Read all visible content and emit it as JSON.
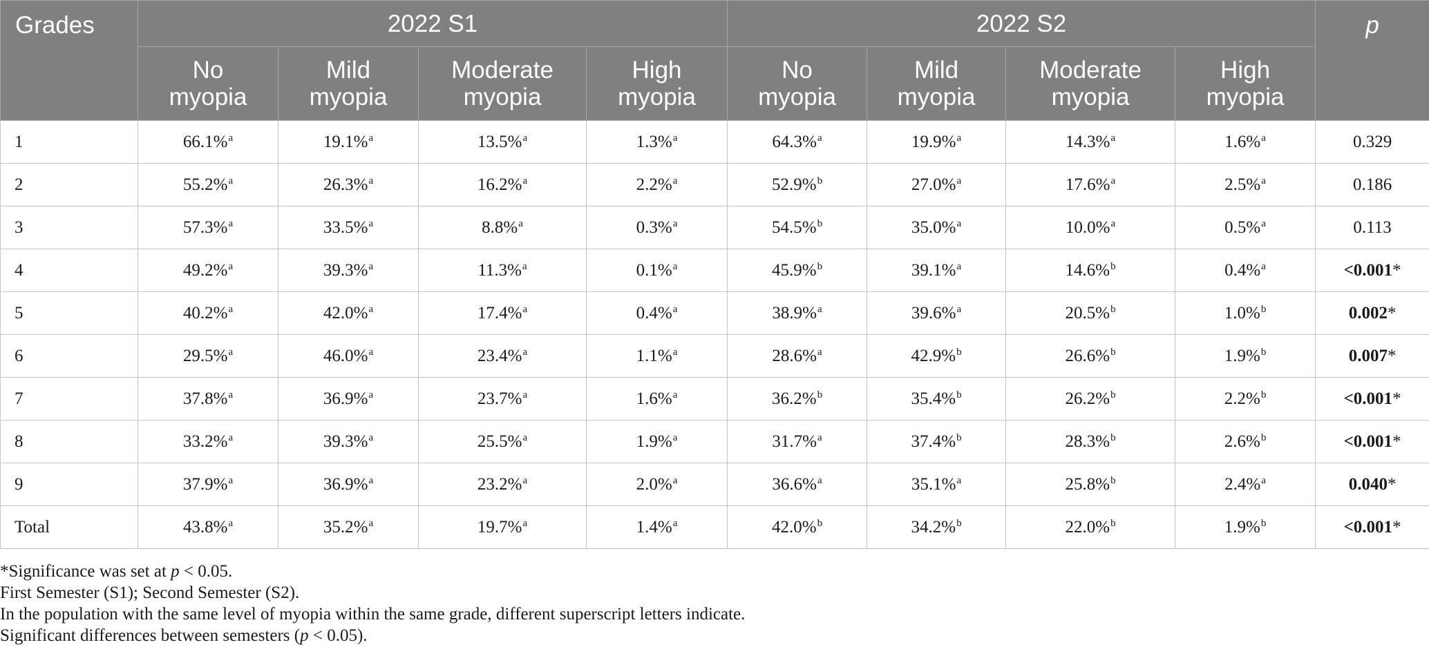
{
  "table": {
    "header": {
      "grades": "Grades",
      "group1": "2022 S1",
      "group2": "2022 S2",
      "p": "p",
      "sub": [
        [
          "No",
          "myopia"
        ],
        [
          "Mild",
          "myopia"
        ],
        [
          "Moderate",
          "myopia"
        ],
        [
          "High",
          "myopia"
        ],
        [
          "No",
          "myopia"
        ],
        [
          "Mild",
          "myopia"
        ],
        [
          "Moderate",
          "myopia"
        ],
        [
          "High",
          "myopia"
        ]
      ]
    },
    "rows": [
      {
        "grade": "1",
        "cells": [
          [
            "66.1%",
            "a"
          ],
          [
            "19.1%",
            "a"
          ],
          [
            "13.5%",
            "a"
          ],
          [
            "1.3%",
            "a"
          ],
          [
            "64.3%",
            "a"
          ],
          [
            "19.9%",
            "a"
          ],
          [
            "14.3%",
            "a"
          ],
          [
            "1.6%",
            "a"
          ]
        ],
        "p": "0.329",
        "sig": false
      },
      {
        "grade": "2",
        "cells": [
          [
            "55.2%",
            "a"
          ],
          [
            "26.3%",
            "a"
          ],
          [
            "16.2%",
            "a"
          ],
          [
            "2.2%",
            "a"
          ],
          [
            "52.9%",
            "b"
          ],
          [
            "27.0%",
            "a"
          ],
          [
            "17.6%",
            "a"
          ],
          [
            "2.5%",
            "a"
          ]
        ],
        "p": "0.186",
        "sig": false
      },
      {
        "grade": "3",
        "cells": [
          [
            "57.3%",
            "a"
          ],
          [
            "33.5%",
            "a"
          ],
          [
            "8.8%",
            "a"
          ],
          [
            "0.3%",
            "a"
          ],
          [
            "54.5%",
            "b"
          ],
          [
            "35.0%",
            "a"
          ],
          [
            "10.0%",
            "a"
          ],
          [
            "0.5%",
            "a"
          ]
        ],
        "p": "0.113",
        "sig": false
      },
      {
        "grade": "4",
        "cells": [
          [
            "49.2%",
            "a"
          ],
          [
            "39.3%",
            "a"
          ],
          [
            "11.3%",
            "a"
          ],
          [
            "0.1%",
            "a"
          ],
          [
            "45.9%",
            "b"
          ],
          [
            "39.1%",
            "a"
          ],
          [
            "14.6%",
            "b"
          ],
          [
            "0.4%",
            "a"
          ]
        ],
        "p": "<0.001",
        "sig": true
      },
      {
        "grade": "5",
        "cells": [
          [
            "40.2%",
            "a"
          ],
          [
            "42.0%",
            "a"
          ],
          [
            "17.4%",
            "a"
          ],
          [
            "0.4%",
            "a"
          ],
          [
            "38.9%",
            "a"
          ],
          [
            "39.6%",
            "a"
          ],
          [
            "20.5%",
            "b"
          ],
          [
            "1.0%",
            "b"
          ]
        ],
        "p": "0.002",
        "sig": true
      },
      {
        "grade": "6",
        "cells": [
          [
            "29.5%",
            "a"
          ],
          [
            "46.0%",
            "a"
          ],
          [
            "23.4%",
            "a"
          ],
          [
            "1.1%",
            "a"
          ],
          [
            "28.6%",
            "a"
          ],
          [
            "42.9%",
            "b"
          ],
          [
            "26.6%",
            "b"
          ],
          [
            "1.9%",
            "b"
          ]
        ],
        "p": "0.007",
        "sig": true
      },
      {
        "grade": "7",
        "cells": [
          [
            "37.8%",
            "a"
          ],
          [
            "36.9%",
            "a"
          ],
          [
            "23.7%",
            "a"
          ],
          [
            "1.6%",
            "a"
          ],
          [
            "36.2%",
            "b"
          ],
          [
            "35.4%",
            "b"
          ],
          [
            "26.2%",
            "b"
          ],
          [
            "2.2%",
            "b"
          ]
        ],
        "p": "<0.001",
        "sig": true
      },
      {
        "grade": "8",
        "cells": [
          [
            "33.2%",
            "a"
          ],
          [
            "39.3%",
            "a"
          ],
          [
            "25.5%",
            "a"
          ],
          [
            "1.9%",
            "a"
          ],
          [
            "31.7%",
            "a"
          ],
          [
            "37.4%",
            "b"
          ],
          [
            "28.3%",
            "b"
          ],
          [
            "2.6%",
            "b"
          ]
        ],
        "p": "<0.001",
        "sig": true
      },
      {
        "grade": "9",
        "cells": [
          [
            "37.9%",
            "a"
          ],
          [
            "36.9%",
            "a"
          ],
          [
            "23.2%",
            "a"
          ],
          [
            "2.0%",
            "a"
          ],
          [
            "36.6%",
            "a"
          ],
          [
            "35.1%",
            "a"
          ],
          [
            "25.8%",
            "b"
          ],
          [
            "2.4%",
            "a"
          ]
        ],
        "p": "0.040",
        "sig": true
      },
      {
        "grade": "Total",
        "cells": [
          [
            "43.8%",
            "a"
          ],
          [
            "35.2%",
            "a"
          ],
          [
            "19.7%",
            "a"
          ],
          [
            "1.4%",
            "a"
          ],
          [
            "42.0%",
            "b"
          ],
          [
            "34.2%",
            "b"
          ],
          [
            "22.0%",
            "b"
          ],
          [
            "1.9%",
            "b"
          ]
        ],
        "p": "<0.001",
        "sig": true
      }
    ],
    "sig_marker": "*"
  },
  "notes": {
    "n1": {
      "pre": "*Significance was set at ",
      "var": "p",
      "post": " < 0.05."
    },
    "n2": "First Semester (S1); Second Semester (S2).",
    "n3": "In the population with the same level of myopia within the same grade, different superscript letters indicate.",
    "n4": {
      "pre": "Significant differences between semesters (",
      "var": "p",
      "post": " < 0.05)."
    }
  },
  "colors": {
    "header_bg": "#808080",
    "header_text": "#ffffff",
    "grid": "#c4c4c4",
    "text": "#1a1a1a"
  }
}
